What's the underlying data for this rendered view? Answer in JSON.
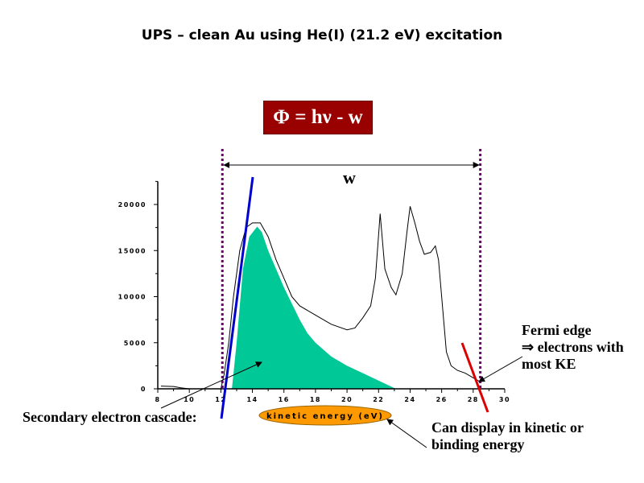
{
  "title": "UPS – clean Au using He(I) (21.2 eV) excitation",
  "formula": "Φ = hν - w",
  "w_label": "w",
  "annotations": {
    "secondary": "Secondary electron cascade:",
    "fermi_line1": "Fermi edge",
    "fermi_line2": "⇒ electrons with",
    "fermi_line3": "most KE",
    "display_line1": "Can display in kinetic or",
    "display_line2": "binding energy"
  },
  "colors": {
    "fill": "#00C896",
    "formula_bg": "#990000",
    "xlabel_bg": "#FF9900",
    "tangent_left": "#0000CC",
    "tangent_right": "#DD0000",
    "dotted": "#660066"
  },
  "chart_data": {
    "type": "line",
    "xlabel": "kinetic energy (eV)",
    "ylabel": "",
    "xlim": [
      8,
      30
    ],
    "ylim": [
      0,
      22500
    ],
    "xticks": [
      8,
      10,
      12,
      14,
      16,
      18,
      20,
      22,
      24,
      26,
      28,
      30
    ],
    "yticks": [
      0,
      5000,
      10000,
      15000,
      20000
    ],
    "grid": false,
    "spectrum": {
      "x": [
        8.2,
        9,
        9.5,
        10,
        11,
        12,
        12.2,
        12.5,
        12.8,
        13.2,
        13.6,
        14,
        14.5,
        15,
        15.5,
        16,
        16.5,
        17,
        18,
        19,
        20,
        20.5,
        21,
        21.5,
        21.8,
        22.1,
        22.4,
        22.8,
        23.1,
        23.5,
        23.8,
        24,
        24.3,
        24.6,
        24.9,
        25.3,
        25.6,
        25.8,
        26.1,
        26.3,
        26.6,
        27,
        27.5,
        28,
        28.5
      ],
      "y": [
        300,
        250,
        100,
        0,
        0,
        0,
        1500,
        5000,
        10000,
        15000,
        17500,
        18000,
        18000,
        16500,
        14000,
        12000,
        10000,
        9000,
        8000,
        7000,
        6400,
        6600,
        7700,
        9000,
        12000,
        19000,
        13000,
        11000,
        10200,
        12500,
        17000,
        19800,
        18000,
        16000,
        14600,
        14800,
        15500,
        14000,
        8000,
        4000,
        2500,
        2000,
        1700,
        1200,
        700
      ]
    },
    "secondary_cascade_fill": {
      "x": [
        12.7,
        13,
        13.4,
        13.8,
        14.3,
        14.6,
        15,
        16,
        17,
        17.5,
        18,
        19,
        20,
        21,
        23.1
      ],
      "y": [
        0,
        5000,
        13000,
        16500,
        17600,
        17000,
        15000,
        11000,
        7500,
        6000,
        5000,
        3500,
        2500,
        1700,
        0
      ]
    },
    "markers": {
      "secondary_onset_x": 12.3,
      "fermi_edge_x": 28.4
    }
  }
}
